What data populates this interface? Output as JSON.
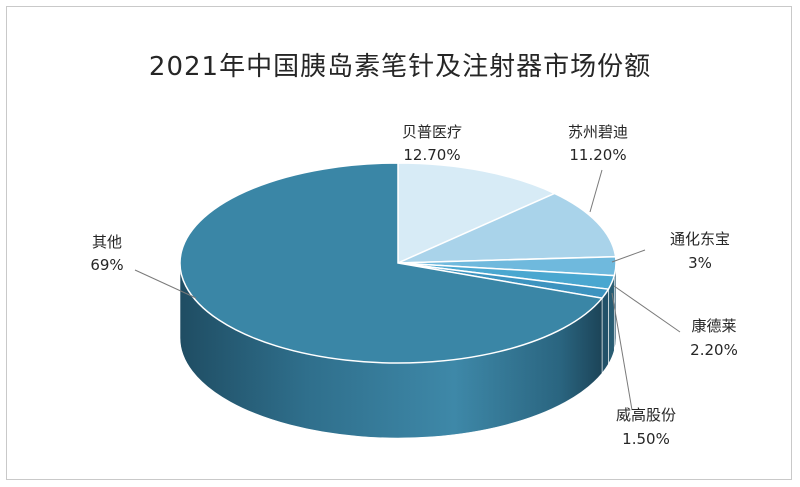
{
  "chart_data": {
    "type": "pie",
    "title": "2021年中国胰岛素笔针及注射器市场份额",
    "slices": [
      {
        "name": "贝普医疗",
        "value": 12.7,
        "label": "12.70%",
        "color": "#d7ebf6"
      },
      {
        "name": "苏州碧迪",
        "value": 11.2,
        "label": "11.20%",
        "color": "#a9d3ea"
      },
      {
        "name": "通化东宝",
        "value": 3,
        "label": "3%",
        "color": "#6fb9dd"
      },
      {
        "name": "康德莱",
        "value": 2.2,
        "label": "2.20%",
        "color": "#4aa7d0"
      },
      {
        "name": "威高股份",
        "value": 1.5,
        "label": "1.50%",
        "color": "#3c93bf"
      },
      {
        "name": "其他",
        "value": 69,
        "label": "69%",
        "color": "#3a86a6"
      }
    ],
    "style": "3d-pie"
  }
}
